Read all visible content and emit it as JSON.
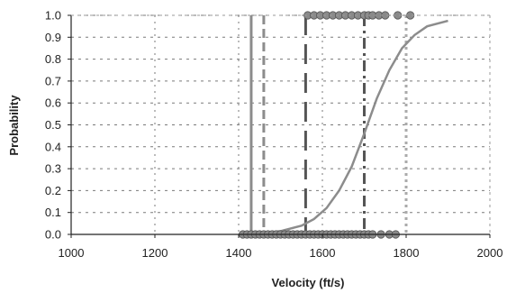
{
  "chart_data": {
    "type": "scatter",
    "title": "",
    "xlabel": "Velocity (ft/s)",
    "ylabel": "Probability",
    "xlim": [
      1000,
      2000
    ],
    "ylim": [
      0,
      1
    ],
    "x_ticks": [
      1000,
      1200,
      1400,
      1600,
      1800,
      2000
    ],
    "x_tick_labels": [
      "1000",
      "1200",
      "1400",
      "1600",
      "1800",
      "2000"
    ],
    "y_ticks": [
      0.0,
      0.1,
      0.2,
      0.3,
      0.4,
      0.5,
      0.6,
      0.7,
      0.8,
      0.9,
      1.0
    ],
    "y_tick_labels": [
      "0.0",
      "0.1",
      "0.2",
      "0.3",
      "0.4",
      "0.5",
      "0.6",
      "0.7",
      "0.8",
      "0.9",
      "1.0"
    ],
    "grid": true,
    "legend": "none",
    "series": [
      {
        "style": "points",
        "color": "#8a8a8a",
        "x": [
          1410,
          1420,
          1430,
          1440,
          1450,
          1460,
          1470,
          1480,
          1490,
          1500,
          1510,
          1520,
          1530,
          1540,
          1550,
          1560,
          1570,
          1580,
          1590,
          1600,
          1610,
          1620,
          1630,
          1640,
          1650,
          1660,
          1670,
          1680,
          1690,
          1700,
          1710,
          1720,
          1740,
          1760,
          1775
        ],
        "y": [
          0,
          0,
          0,
          0,
          0,
          0,
          0,
          0,
          0,
          0,
          0,
          0,
          0,
          0,
          0,
          0,
          0,
          0,
          0,
          0,
          0,
          0,
          0,
          0,
          0,
          0,
          0,
          0,
          0,
          0,
          0,
          0,
          0,
          0,
          0
        ]
      },
      {
        "style": "points",
        "color": "#8a8a8a",
        "x": [
          1565,
          1580,
          1595,
          1610,
          1625,
          1640,
          1655,
          1670,
          1685,
          1700,
          1710,
          1720,
          1735,
          1750,
          1780,
          1810
        ],
        "y": [
          1,
          1,
          1,
          1,
          1,
          1,
          1,
          1,
          1,
          1,
          1,
          1,
          1,
          1,
          1,
          1
        ]
      },
      {
        "style": "curve",
        "color": "#8c8c8c",
        "x": [
          1400,
          1450,
          1500,
          1550,
          1580,
          1610,
          1640,
          1670,
          1700,
          1730,
          1760,
          1790,
          1820,
          1850,
          1900
        ],
        "y": [
          0.0,
          0.005,
          0.015,
          0.04,
          0.07,
          0.12,
          0.2,
          0.31,
          0.46,
          0.62,
          0.75,
          0.85,
          0.91,
          0.95,
          0.975
        ]
      }
    ],
    "reference_lines": [
      {
        "x": 1430,
        "style": "solid",
        "color": "#8c8c8c"
      },
      {
        "x": 1460,
        "style": "dash",
        "color": "#8c8c8c"
      },
      {
        "x": 1560,
        "style": "long-dash",
        "color": "#555555"
      },
      {
        "x": 1700,
        "style": "dash-dot",
        "color": "#555555"
      },
      {
        "x": 1800,
        "style": "dot",
        "color": "#aaaaaa"
      }
    ]
  }
}
